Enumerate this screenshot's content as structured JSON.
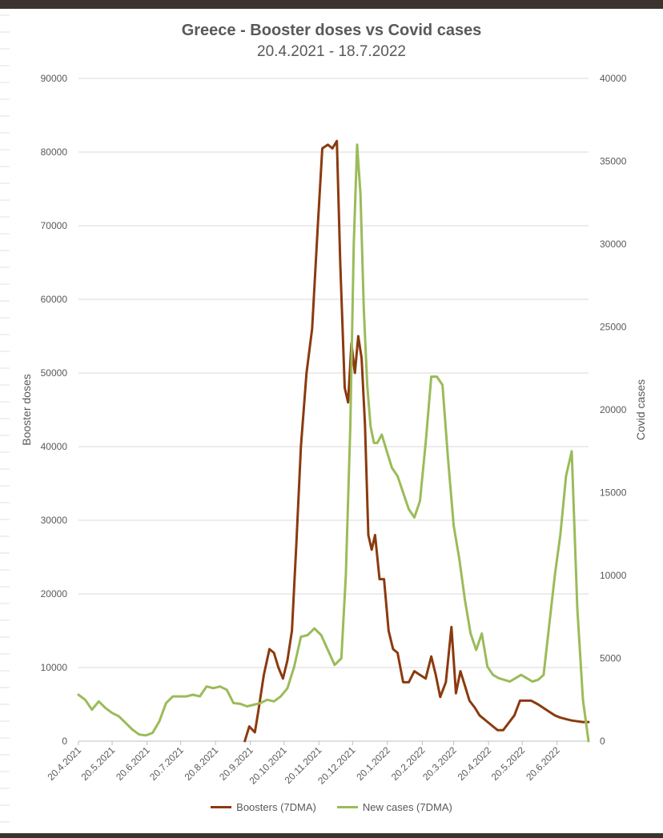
{
  "chart_data": {
    "type": "line",
    "title": "Greece - Booster doses vs Covid cases",
    "subtitle": "20.4.2021 - 18.7.2022",
    "ylabel": "Booster doses",
    "y2label": "Covid cases",
    "ylim": [
      0,
      90000
    ],
    "y2lim": [
      0,
      40000
    ],
    "yticks": [
      "0",
      "10000",
      "20000",
      "30000",
      "40000",
      "50000",
      "60000",
      "70000",
      "80000",
      "90000"
    ],
    "y2ticks": [
      "0",
      "5000",
      "10000",
      "15000",
      "20000",
      "25000",
      "30000",
      "35000",
      "40000"
    ],
    "xticks": [
      "20.4.2021",
      "20.5.2021",
      "20.6.2021",
      "20.7.2021",
      "20.8.2021",
      "20.9.2021",
      "20.10.2021",
      "20.11.2021",
      "20.12.2021",
      "20.1.2022",
      "20.2.2022",
      "20.3.2022",
      "20.4.2022",
      "20.5.2022",
      "20.6.2022"
    ],
    "xrange": [
      "2021-04-20",
      "2022-07-18"
    ],
    "grid": true,
    "legend_position": "bottom",
    "series": [
      {
        "name": "Boosters (7DMA)",
        "axis": "left",
        "color": "#8B3A0F",
        "x": [
          "2021-09-15",
          "2021-09-19",
          "2021-09-24",
          "2021-09-27",
          "2021-10-02",
          "2021-10-07",
          "2021-10-11",
          "2021-10-15",
          "2021-10-19",
          "2021-10-23",
          "2021-10-27",
          "2021-10-31",
          "2021-11-04",
          "2021-11-09",
          "2021-11-14",
          "2021-11-19",
          "2021-11-23",
          "2021-11-28",
          "2021-12-02",
          "2021-12-06",
          "2021-12-09",
          "2021-12-13",
          "2021-12-16",
          "2021-12-19",
          "2021-12-22",
          "2021-12-25",
          "2021-12-28",
          "2021-12-31",
          "2022-01-03",
          "2022-01-06",
          "2022-01-09",
          "2022-01-13",
          "2022-01-17",
          "2022-01-21",
          "2022-01-25",
          "2022-01-29",
          "2022-02-03",
          "2022-02-08",
          "2022-02-13",
          "2022-02-18",
          "2022-02-23",
          "2022-02-28",
          "2022-03-04",
          "2022-03-08",
          "2022-03-13",
          "2022-03-18",
          "2022-03-22",
          "2022-03-26",
          "2022-03-30",
          "2022-04-03",
          "2022-04-08",
          "2022-04-12",
          "2022-04-16",
          "2022-04-20",
          "2022-04-24",
          "2022-04-28",
          "2022-05-03",
          "2022-05-08",
          "2022-05-13",
          "2022-05-18",
          "2022-05-23",
          "2022-05-28",
          "2022-06-03",
          "2022-06-08",
          "2022-06-13",
          "2022-06-18",
          "2022-06-23",
          "2022-06-28",
          "2022-07-03",
          "2022-07-08",
          "2022-07-13",
          "2022-07-18"
        ],
        "values": [
          0,
          2000,
          1200,
          4000,
          9000,
          12500,
          12000,
          10000,
          8500,
          11000,
          15000,
          27000,
          40000,
          50000,
          56000,
          70000,
          80500,
          81000,
          80500,
          81500,
          65000,
          48000,
          46000,
          54000,
          50000,
          55000,
          52000,
          43000,
          28000,
          26000,
          28000,
          22000,
          22000,
          15000,
          12500,
          12000,
          8000,
          8000,
          9500,
          9000,
          8500,
          11500,
          9000,
          6000,
          8000,
          15500,
          6500,
          9500,
          7500,
          5500,
          4500,
          3500,
          3000,
          2500,
          2000,
          1500,
          1500,
          2500,
          3500,
          5500,
          5500,
          5500,
          5000,
          4500,
          4000,
          3500,
          3200,
          3000,
          2800,
          2700,
          2600,
          2600
        ]
      },
      {
        "name": "New cases (7DMA)",
        "axis": "right",
        "color": "#9BBB59",
        "x": [
          "2021-04-20",
          "2021-04-26",
          "2021-05-02",
          "2021-05-08",
          "2021-05-14",
          "2021-05-20",
          "2021-05-26",
          "2021-06-01",
          "2021-06-07",
          "2021-06-13",
          "2021-06-19",
          "2021-06-25",
          "2021-07-01",
          "2021-07-07",
          "2021-07-13",
          "2021-07-19",
          "2021-07-25",
          "2021-07-31",
          "2021-08-06",
          "2021-08-12",
          "2021-08-18",
          "2021-08-24",
          "2021-08-30",
          "2021-09-05",
          "2021-09-11",
          "2021-09-17",
          "2021-09-23",
          "2021-09-29",
          "2021-10-05",
          "2021-10-11",
          "2021-10-17",
          "2021-10-23",
          "2021-10-29",
          "2021-11-04",
          "2021-11-10",
          "2021-11-16",
          "2021-11-22",
          "2021-11-28",
          "2021-12-04",
          "2021-12-10",
          "2021-12-14",
          "2021-12-18",
          "2021-12-21",
          "2021-12-24",
          "2021-12-27",
          "2021-12-30",
          "2022-01-02",
          "2022-01-05",
          "2022-01-08",
          "2022-01-11",
          "2022-01-15",
          "2022-01-19",
          "2022-01-24",
          "2022-01-29",
          "2022-02-03",
          "2022-02-08",
          "2022-02-13",
          "2022-02-18",
          "2022-02-23",
          "2022-02-28",
          "2022-03-05",
          "2022-03-10",
          "2022-03-15",
          "2022-03-20",
          "2022-03-25",
          "2022-03-30",
          "2022-04-04",
          "2022-04-09",
          "2022-04-14",
          "2022-04-19",
          "2022-04-24",
          "2022-04-29",
          "2022-05-04",
          "2022-05-09",
          "2022-05-14",
          "2022-05-19",
          "2022-05-24",
          "2022-05-29",
          "2022-06-03",
          "2022-06-08",
          "2022-06-13",
          "2022-06-18",
          "2022-06-23",
          "2022-06-28",
          "2022-07-03",
          "2022-07-08",
          "2022-07-13",
          "2022-07-18"
        ],
        "values": [
          2800,
          2500,
          1900,
          2400,
          2000,
          1700,
          1500,
          1100,
          700,
          400,
          350,
          500,
          1200,
          2300,
          2700,
          2700,
          2700,
          2800,
          2700,
          3300,
          3200,
          3300,
          3100,
          2300,
          2250,
          2100,
          2200,
          2300,
          2500,
          2400,
          2700,
          3200,
          4500,
          6300,
          6400,
          6800,
          6400,
          5500,
          4600,
          5000,
          10000,
          19000,
          30000,
          36000,
          33000,
          26000,
          21500,
          19000,
          18000,
          18000,
          18500,
          17600,
          16500,
          16000,
          15000,
          14000,
          13500,
          14500,
          18000,
          22000,
          22000,
          21500,
          17000,
          13000,
          11000,
          8500,
          6500,
          5500,
          6500,
          4500,
          4000,
          3800,
          3700,
          3600,
          3800,
          4000,
          3800,
          3600,
          3700,
          4000,
          7000,
          10000,
          12500,
          16000,
          17500,
          8000,
          2500,
          0
        ]
      }
    ]
  }
}
